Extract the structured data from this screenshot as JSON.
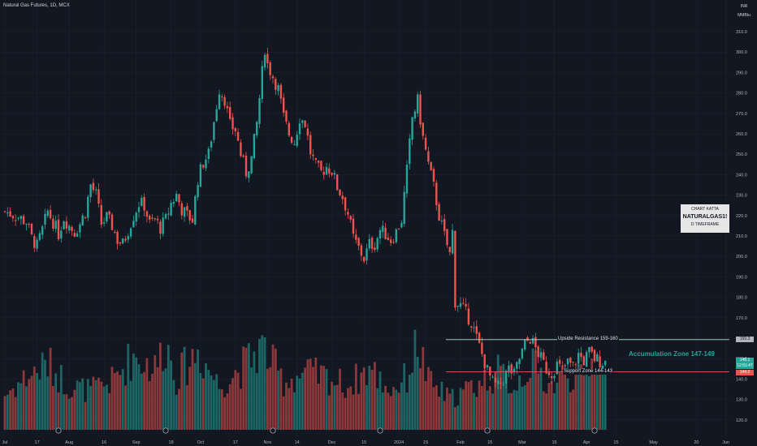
{
  "header": {
    "symbol_title": "Natural Gas Futures, 1D, MCX"
  },
  "top_right": {
    "currency": "INR",
    "unit": "MMBtu"
  },
  "annotation_box": {
    "line1": "CHART KATTA",
    "line2": "NATURALGAS1!",
    "line3": "D TIMEFRAME"
  },
  "levels": {
    "resistance": {
      "label": "Upside Resistance 159-160",
      "price": 159.3,
      "price_label": "159.3"
    },
    "support": {
      "label": "Support Zone 144-143",
      "price": 143.5
    },
    "accumulation": {
      "label": "Accumulation Zone 147-149"
    }
  },
  "price_labels": {
    "last": "148.1",
    "countdown": "12:51:47",
    "prev": "144.2"
  },
  "colors": {
    "up": "#26a69a",
    "down": "#ef5350",
    "background": "#131722",
    "grid": "#1e222d",
    "text": "#b2b5be"
  },
  "chart_data": {
    "type": "candlestick",
    "title": "Natural Gas Futures, 1D, MCX",
    "ylim": [
      115,
      317
    ],
    "y_ticks": [
      120,
      130,
      140,
      150,
      160,
      170,
      180,
      190,
      200,
      210,
      220,
      230,
      240,
      250,
      260,
      270,
      280,
      290,
      300,
      310
    ],
    "y_tick_labels": [
      "120.0",
      "130.0",
      "140.0",
      "150.0",
      "160.0",
      "170.0",
      "180.0",
      "190.0",
      "200.0",
      "210.0",
      "220.0",
      "230.0",
      "240.0",
      "250.0",
      "260.0",
      "270.0",
      "280.0",
      "290.0",
      "300.0",
      "310.0"
    ],
    "x_labels": [
      {
        "t": "Jul",
        "d": 0
      },
      {
        "t": "17",
        "d": 12
      },
      {
        "t": "Aug",
        "d": 24
      },
      {
        "t": "16",
        "d": 37
      },
      {
        "t": "Sep",
        "d": 49
      },
      {
        "t": "18",
        "d": 62
      },
      {
        "t": "Oct",
        "d": 73
      },
      {
        "t": "17",
        "d": 86
      },
      {
        "t": "Nov",
        "d": 98
      },
      {
        "t": "14",
        "d": 109
      },
      {
        "t": "Dec",
        "d": 122
      },
      {
        "t": "15",
        "d": 134
      },
      {
        "t": "2024",
        "d": 147
      },
      {
        "t": "15",
        "d": 157
      },
      {
        "t": "Feb",
        "d": 170
      },
      {
        "t": "15",
        "d": 181
      },
      {
        "t": "Mar",
        "d": 193
      },
      {
        "t": "15",
        "d": 205
      },
      {
        "t": "Apr",
        "d": 217
      },
      {
        "t": "15",
        "d": 228
      },
      {
        "t": "May",
        "d": 242
      },
      {
        "t": "20",
        "d": 258
      },
      {
        "t": "Jun",
        "d": 269
      }
    ],
    "close_path": [
      [
        0,
        222
      ],
      [
        4,
        220
      ],
      [
        8,
        217
      ],
      [
        10,
        209
      ],
      [
        12,
        205
      ],
      [
        14,
        213
      ],
      [
        16,
        222
      ],
      [
        18,
        217
      ],
      [
        20,
        211
      ],
      [
        22,
        219
      ],
      [
        24,
        215
      ],
      [
        26,
        212
      ],
      [
        28,
        216
      ],
      [
        30,
        222
      ],
      [
        32,
        235
      ],
      [
        34,
        230
      ],
      [
        36,
        216
      ],
      [
        38,
        219
      ],
      [
        40,
        215
      ],
      [
        42,
        208
      ],
      [
        44,
        206
      ],
      [
        46,
        213
      ],
      [
        48,
        220
      ],
      [
        50,
        226
      ],
      [
        52,
        225
      ],
      [
        54,
        216
      ],
      [
        56,
        218
      ],
      [
        58,
        214
      ],
      [
        60,
        218
      ],
      [
        62,
        226
      ],
      [
        64,
        230
      ],
      [
        66,
        223
      ],
      [
        68,
        220
      ],
      [
        70,
        218
      ],
      [
        72,
        238
      ],
      [
        74,
        246
      ],
      [
        76,
        250
      ],
      [
        78,
        266
      ],
      [
        80,
        282
      ],
      [
        82,
        277
      ],
      [
        84,
        264
      ],
      [
        86,
        262
      ],
      [
        88,
        250
      ],
      [
        90,
        241
      ],
      [
        92,
        248
      ],
      [
        94,
        265
      ],
      [
        96,
        290
      ],
      [
        97,
        302
      ],
      [
        98,
        294
      ],
      [
        100,
        288
      ],
      [
        102,
        282
      ],
      [
        104,
        268
      ],
      [
        106,
        260
      ],
      [
        108,
        256
      ],
      [
        110,
        268
      ],
      [
        112,
        265
      ],
      [
        114,
        251
      ],
      [
        116,
        244
      ],
      [
        118,
        241
      ],
      [
        120,
        244
      ],
      [
        122,
        242
      ],
      [
        124,
        234
      ],
      [
        126,
        229
      ],
      [
        128,
        221
      ],
      [
        130,
        209
      ],
      [
        132,
        204
      ],
      [
        134,
        199
      ],
      [
        136,
        206
      ],
      [
        138,
        206
      ],
      [
        140,
        213
      ],
      [
        142,
        211
      ],
      [
        144,
        208
      ],
      [
        146,
        212
      ],
      [
        148,
        218
      ],
      [
        150,
        242
      ],
      [
        152,
        268
      ],
      [
        154,
        276
      ],
      [
        156,
        258
      ],
      [
        158,
        245
      ],
      [
        160,
        234
      ],
      [
        162,
        220
      ],
      [
        164,
        210
      ],
      [
        166,
        201
      ],
      [
        167,
        212
      ],
      [
        168,
        178
      ],
      [
        170,
        176
      ],
      [
        172,
        172
      ],
      [
        174,
        168
      ],
      [
        176,
        160
      ],
      [
        178,
        152
      ],
      [
        180,
        144
      ],
      [
        182,
        138
      ],
      [
        184,
        136
      ],
      [
        186,
        140
      ],
      [
        188,
        145
      ],
      [
        190,
        142
      ],
      [
        192,
        150
      ],
      [
        194,
        157
      ],
      [
        196,
        160
      ],
      [
        198,
        155
      ],
      [
        200,
        150
      ],
      [
        202,
        145
      ],
      [
        204,
        143
      ],
      [
        206,
        147
      ],
      [
        208,
        144
      ],
      [
        210,
        148
      ],
      [
        212,
        146
      ],
      [
        214,
        152
      ],
      [
        216,
        149
      ],
      [
        218,
        153
      ],
      [
        220,
        150
      ],
      [
        222,
        149
      ],
      [
        224,
        148.1
      ]
    ],
    "volume_path": [
      [
        0,
        0.4
      ],
      [
        8,
        0.6
      ],
      [
        16,
        0.75
      ],
      [
        24,
        0.5
      ],
      [
        32,
        0.45
      ],
      [
        40,
        0.55
      ],
      [
        48,
        0.85
      ],
      [
        56,
        0.7
      ],
      [
        60,
        1.0
      ],
      [
        64,
        0.6
      ],
      [
        72,
        0.9
      ],
      [
        80,
        0.5
      ],
      [
        88,
        0.7
      ],
      [
        96,
        0.95
      ],
      [
        104,
        0.55
      ],
      [
        112,
        0.65
      ],
      [
        120,
        0.6
      ],
      [
        128,
        0.5
      ],
      [
        136,
        0.7
      ],
      [
        144,
        0.45
      ],
      [
        150,
        0.6
      ],
      [
        154,
        1.0
      ],
      [
        158,
        0.55
      ],
      [
        166,
        0.35
      ],
      [
        172,
        0.45
      ],
      [
        178,
        0.55
      ],
      [
        184,
        0.65
      ],
      [
        190,
        0.5
      ],
      [
        196,
        0.75
      ],
      [
        204,
        0.5
      ],
      [
        210,
        0.65
      ],
      [
        216,
        0.55
      ],
      [
        220,
        0.85
      ],
      [
        224,
        0.6
      ]
    ]
  }
}
